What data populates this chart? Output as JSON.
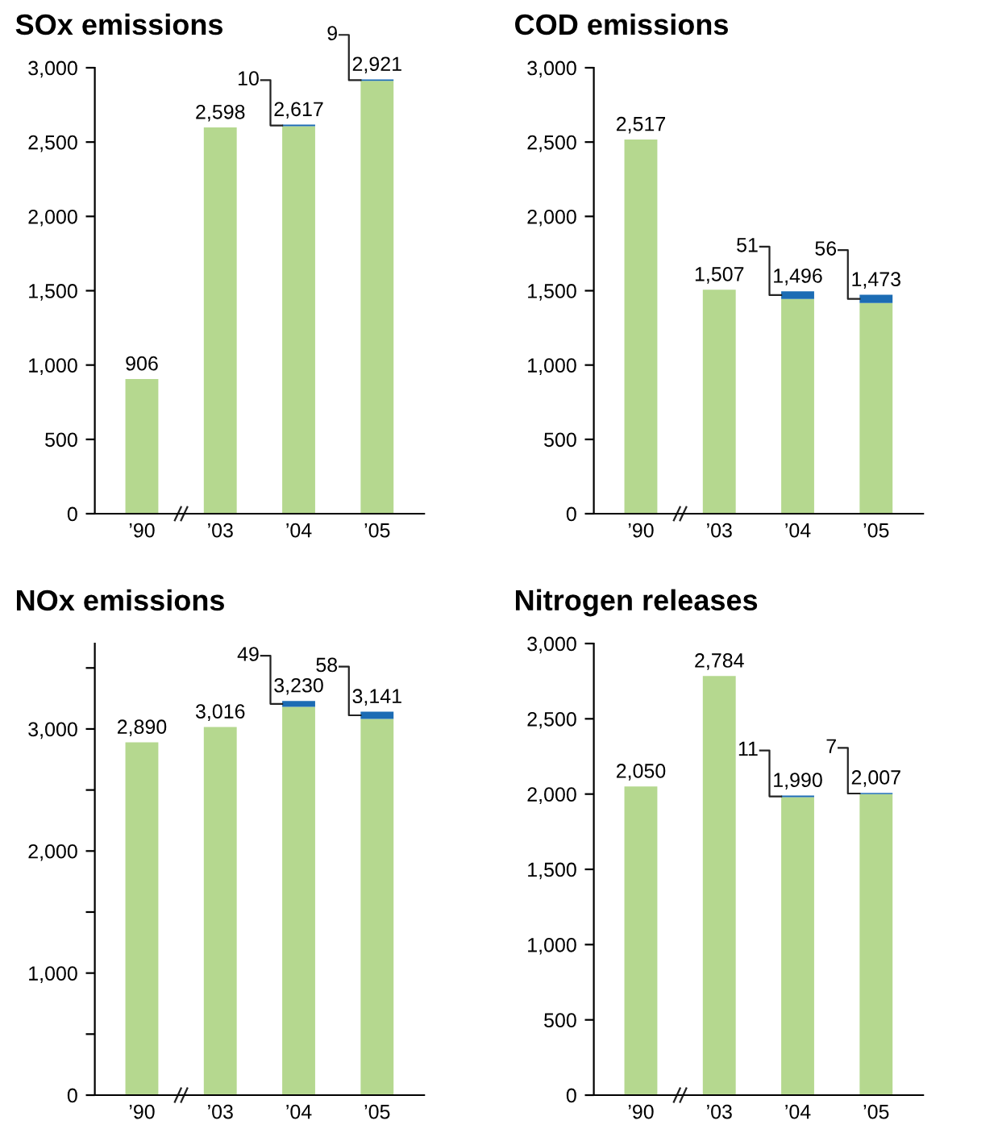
{
  "chart_data": [
    {
      "type": "bar",
      "title": "SOx emissions",
      "stacked": true,
      "categories": [
        "’90",
        "’03",
        "’04",
        "’05"
      ],
      "series": [
        {
          "color": "#b5d88f",
          "values": [
            906,
            2598,
            2607,
            2912
          ]
        },
        {
          "color": "#1c6cb4",
          "values": [
            null,
            null,
            10,
            9
          ],
          "value_labels": [
            null,
            null,
            "10",
            "9"
          ]
        }
      ],
      "totals": [
        "906",
        "2,598",
        "2,617",
        "2,921"
      ],
      "ylim": [
        0,
        3000
      ],
      "yticks": [
        0,
        {
          "value": 500,
          "label": "500"
        },
        {
          "value": 1000,
          "label": "1,000"
        },
        {
          "value": 1500,
          "label": "1,500"
        },
        {
          "value": 2000,
          "label": "2,000"
        },
        {
          "value": 2500,
          "label": "2,500"
        },
        {
          "value": 3000,
          "label": "3,000"
        }
      ]
    },
    {
      "type": "bar",
      "title": "COD emissions",
      "stacked": true,
      "categories": [
        "’90",
        "’03",
        "’04",
        "’05"
      ],
      "series": [
        {
          "color": "#b5d88f",
          "values": [
            2517,
            1507,
            1445,
            1417
          ]
        },
        {
          "color": "#1c6cb4",
          "values": [
            null,
            null,
            51,
            56
          ],
          "value_labels": [
            null,
            null,
            "51",
            "56"
          ]
        }
      ],
      "totals": [
        "2,517",
        "1,507",
        "1,496",
        "1,473"
      ],
      "ylim": [
        0,
        3000
      ],
      "yticks": [
        0,
        {
          "value": 500,
          "label": "500"
        },
        {
          "value": 1000,
          "label": "1,000"
        },
        {
          "value": 1500,
          "label": "1,500"
        },
        {
          "value": 2000,
          "label": "2,000"
        },
        {
          "value": 2500,
          "label": "2,500"
        },
        {
          "value": 3000,
          "label": "3,000"
        }
      ]
    },
    {
      "type": "bar",
      "title": "NOx emissions",
      "stacked": true,
      "categories": [
        "’90",
        "’03",
        "’04",
        "’05"
      ],
      "series": [
        {
          "color": "#b5d88f",
          "values": [
            2890,
            3016,
            3181,
            3083
          ]
        },
        {
          "color": "#1c6cb4",
          "values": [
            null,
            null,
            49,
            58
          ],
          "value_labels": [
            null,
            null,
            "49",
            "58"
          ]
        }
      ],
      "totals": [
        "2,890",
        "3,016",
        "3,230",
        "3,141"
      ],
      "ylim": [
        0,
        3700
      ],
      "yticks": [
        0,
        {
          "value": 500,
          "label": null
        },
        {
          "value": 1000,
          "label": "1,000"
        },
        {
          "value": 1500,
          "label": null
        },
        {
          "value": 2000,
          "label": "2,000"
        },
        {
          "value": 2500,
          "label": null
        },
        {
          "value": 3000,
          "label": "3,000"
        },
        {
          "value": 3500,
          "label": null
        }
      ]
    },
    {
      "type": "bar",
      "title": "Nitrogen releases",
      "stacked": true,
      "categories": [
        "’90",
        "’03",
        "’04",
        "’05"
      ],
      "series": [
        {
          "color": "#b5d88f",
          "values": [
            2050,
            2784,
            1979,
            2000
          ]
        },
        {
          "color": "#1c6cb4",
          "values": [
            null,
            null,
            11,
            7
          ],
          "value_labels": [
            null,
            null,
            "11",
            "7"
          ]
        }
      ],
      "totals": [
        "2,050",
        "2,784",
        "1,990",
        "2,007"
      ],
      "ylim": [
        0,
        3000
      ],
      "yticks": [
        0,
        {
          "value": 500,
          "label": "500"
        },
        {
          "value": 1000,
          "label": "1,000"
        },
        {
          "value": 1500,
          "label": "1,500"
        },
        {
          "value": 2000,
          "label": "2,000"
        },
        {
          "value": 2500,
          "label": "2,500"
        },
        {
          "value": 3000,
          "label": "3,000"
        }
      ]
    }
  ]
}
